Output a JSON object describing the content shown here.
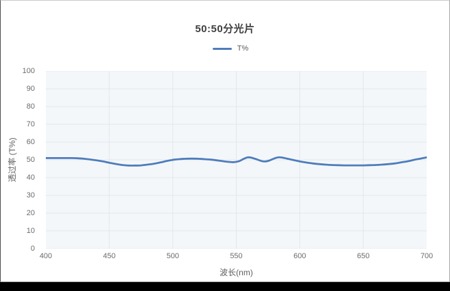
{
  "chart": {
    "title": "50:50分光片",
    "legend": {
      "label": "T%"
    },
    "xlabel": "波长(nm)",
    "ylabel": "透过率 (T%)"
  },
  "chart_data": {
    "type": "line",
    "title": "50:50分光片",
    "xlabel": "波长(nm)",
    "ylabel": "透过率 (T%)",
    "xlim": [
      400,
      700
    ],
    "ylim": [
      0,
      100
    ],
    "xticks": [
      400,
      450,
      500,
      550,
      600,
      650,
      700
    ],
    "yticks": [
      0,
      10,
      20,
      30,
      40,
      50,
      60,
      70,
      80,
      90,
      100
    ],
    "grid": true,
    "legend_position": "top",
    "plot_bg": "#f4f7fa",
    "grid_color": "#e2e7ec",
    "tick_color": "#6b6b6b",
    "series": [
      {
        "name": "T%",
        "color": "#4e7dbb",
        "points": [
          [
            400,
            51.0
          ],
          [
            405,
            51.0
          ],
          [
            410,
            51.0
          ],
          [
            415,
            51.0
          ],
          [
            420,
            51.0
          ],
          [
            425,
            50.9
          ],
          [
            430,
            50.6
          ],
          [
            435,
            50.2
          ],
          [
            440,
            49.7
          ],
          [
            445,
            49.1
          ],
          [
            450,
            48.4
          ],
          [
            455,
            47.7
          ],
          [
            460,
            47.1
          ],
          [
            465,
            46.8
          ],
          [
            470,
            46.8
          ],
          [
            475,
            46.9
          ],
          [
            480,
            47.3
          ],
          [
            485,
            47.8
          ],
          [
            490,
            48.5
          ],
          [
            495,
            49.3
          ],
          [
            500,
            50.0
          ],
          [
            505,
            50.4
          ],
          [
            510,
            50.6
          ],
          [
            515,
            50.7
          ],
          [
            520,
            50.6
          ],
          [
            525,
            50.4
          ],
          [
            530,
            50.1
          ],
          [
            535,
            49.7
          ],
          [
            540,
            49.2
          ],
          [
            545,
            48.8
          ],
          [
            548,
            48.7
          ],
          [
            552,
            49.2
          ],
          [
            556,
            50.6
          ],
          [
            559,
            51.4
          ],
          [
            562,
            51.2
          ],
          [
            566,
            50.3
          ],
          [
            570,
            49.3
          ],
          [
            573,
            49.1
          ],
          [
            576,
            49.6
          ],
          [
            580,
            50.8
          ],
          [
            583,
            51.4
          ],
          [
            586,
            51.3
          ],
          [
            590,
            50.7
          ],
          [
            595,
            49.9
          ],
          [
            600,
            49.1
          ],
          [
            605,
            48.5
          ],
          [
            610,
            48.0
          ],
          [
            615,
            47.6
          ],
          [
            620,
            47.3
          ],
          [
            625,
            47.1
          ],
          [
            630,
            47.0
          ],
          [
            635,
            46.9
          ],
          [
            640,
            46.9
          ],
          [
            645,
            46.9
          ],
          [
            650,
            46.9
          ],
          [
            655,
            47.0
          ],
          [
            660,
            47.1
          ],
          [
            665,
            47.3
          ],
          [
            670,
            47.6
          ],
          [
            675,
            48.0
          ],
          [
            680,
            48.6
          ],
          [
            685,
            49.2
          ],
          [
            690,
            50.0
          ],
          [
            695,
            50.7
          ],
          [
            700,
            51.4
          ]
        ]
      }
    ]
  }
}
